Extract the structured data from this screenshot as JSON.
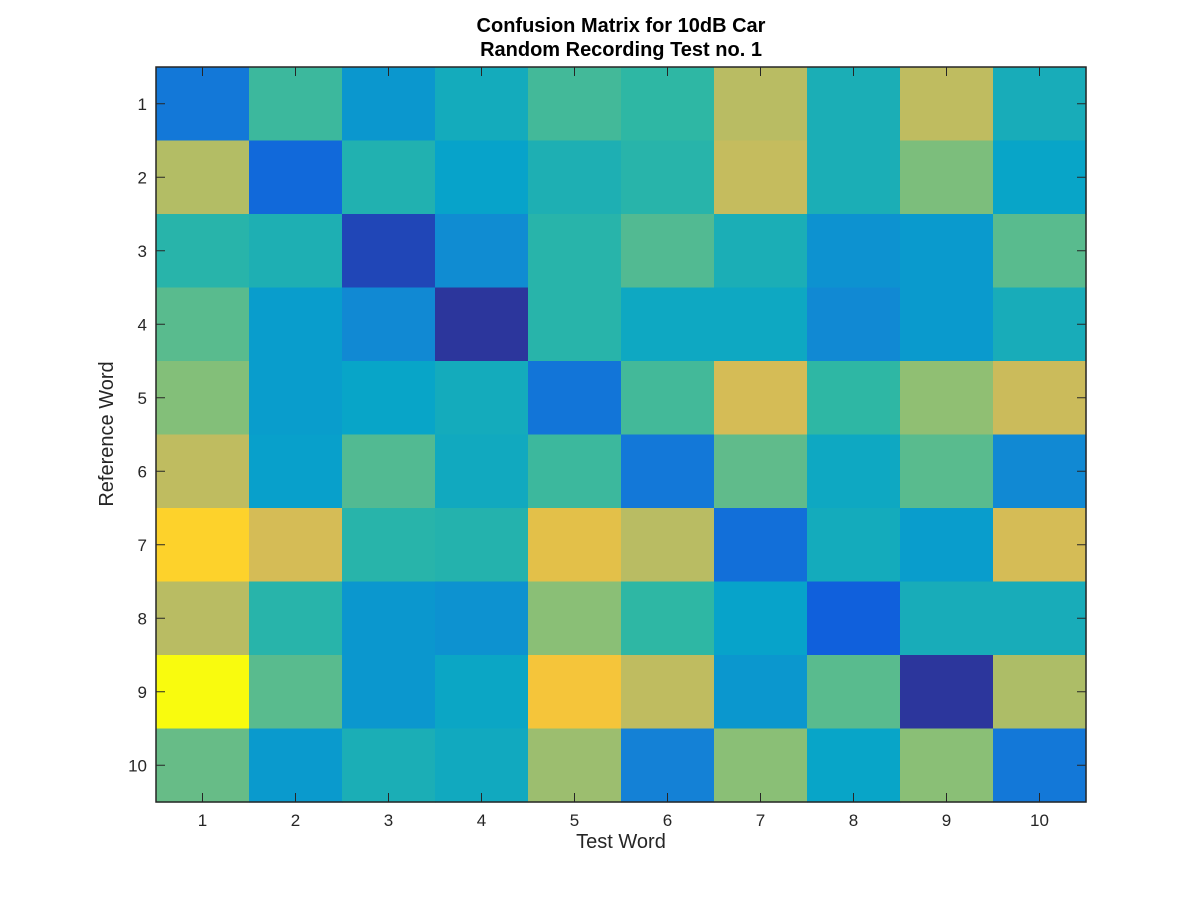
{
  "chart_data": {
    "type": "heatmap",
    "title_lines": [
      "Confusion Matrix for 10dB Car",
      "Random Recording Test no. 1"
    ],
    "xlabel": "Test Word",
    "ylabel": "Reference Word",
    "x_ticks": [
      "1",
      "2",
      "3",
      "4",
      "5",
      "6",
      "7",
      "8",
      "9",
      "10"
    ],
    "y_ticks": [
      "1",
      "2",
      "3",
      "4",
      "5",
      "6",
      "7",
      "8",
      "9",
      "10"
    ],
    "colormap": "parula",
    "colormap_stops": [
      "#352a87",
      "#0f5cdd",
      "#1481d6",
      "#06a4ca",
      "#2eb7a4",
      "#87bf77",
      "#d1bb59",
      "#fec832",
      "#f9fb0e"
    ],
    "grid": false,
    "colorbar": false,
    "values": [
      [
        0.22,
        0.52,
        0.33,
        0.42,
        0.53,
        0.5,
        0.71,
        0.44,
        0.72,
        0.43
      ],
      [
        0.7,
        0.17,
        0.46,
        0.37,
        0.45,
        0.48,
        0.73,
        0.44,
        0.61,
        0.38
      ],
      [
        0.48,
        0.45,
        0.07,
        0.29,
        0.48,
        0.55,
        0.44,
        0.31,
        0.34,
        0.56
      ],
      [
        0.56,
        0.35,
        0.28,
        0.03,
        0.48,
        0.4,
        0.4,
        0.28,
        0.34,
        0.43
      ],
      [
        0.62,
        0.35,
        0.38,
        0.42,
        0.21,
        0.53,
        0.76,
        0.5,
        0.64,
        0.74
      ],
      [
        0.72,
        0.36,
        0.55,
        0.41,
        0.52,
        0.22,
        0.57,
        0.4,
        0.56,
        0.28
      ],
      [
        0.9,
        0.76,
        0.48,
        0.47,
        0.8,
        0.71,
        0.19,
        0.42,
        0.35,
        0.76
      ],
      [
        0.71,
        0.48,
        0.33,
        0.31,
        0.63,
        0.5,
        0.37,
        0.14,
        0.43,
        0.43
      ],
      [
        1.0,
        0.56,
        0.33,
        0.39,
        0.85,
        0.72,
        0.33,
        0.56,
        0.03,
        0.69
      ],
      [
        0.58,
        0.34,
        0.44,
        0.41,
        0.66,
        0.25,
        0.63,
        0.38,
        0.63,
        0.22
      ]
    ]
  }
}
